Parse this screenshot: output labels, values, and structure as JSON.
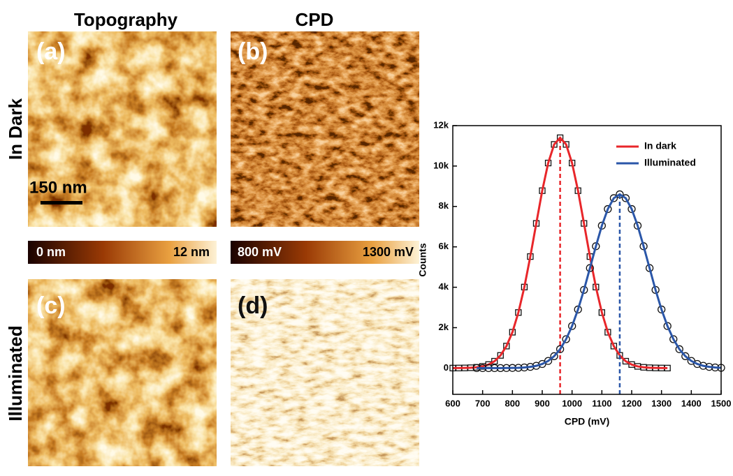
{
  "figure": {
    "columns": [
      "Topography",
      "CPD"
    ],
    "rows": [
      "In Dark",
      "Illuminated"
    ],
    "panels": [
      "(a)",
      "(b)",
      "(c)",
      "(d)"
    ],
    "scale_bar": "150 nm",
    "colorbars": [
      [
        "0 nm",
        "12 nm"
      ],
      [
        "800 mV",
        "1300 mV"
      ]
    ]
  },
  "chart_data": {
    "type": "scatter",
    "xlabel": "CPD (mV)",
    "ylabel": "Counts",
    "xlim": [
      600,
      1500
    ],
    "xticks": [
      600,
      700,
      800,
      900,
      1000,
      1100,
      1200,
      1300,
      1400,
      1500
    ],
    "ylim": [
      -1300,
      12000
    ],
    "yticks": [
      0,
      {
        "value": 2000,
        "label": "2k"
      },
      {
        "value": 4000,
        "label": "4k"
      },
      {
        "value": 6000,
        "label": "6k"
      },
      {
        "value": 8000,
        "label": "8k"
      },
      {
        "value": 10000,
        "label": "10k"
      },
      {
        "value": 12000,
        "label": "12k"
      }
    ],
    "legend": "upper right",
    "series": [
      {
        "name": "In dark",
        "color": "#e8262a",
        "marker": "square",
        "peak": 960,
        "x": [
          600,
          620,
          640,
          660,
          680,
          700,
          720,
          740,
          760,
          780,
          800,
          820,
          840,
          860,
          880,
          900,
          920,
          940,
          960,
          980,
          1000,
          1020,
          1040,
          1060,
          1080,
          1100,
          1120,
          1140,
          1160,
          1180,
          1200,
          1220,
          1240,
          1260,
          1280,
          1300,
          1320
        ],
        "values": [
          0,
          3,
          7,
          17,
          39,
          84,
          175,
          340,
          627,
          1088,
          1775,
          2750,
          4010,
          5520,
          7160,
          8780,
          10150,
          11070,
          11400,
          11070,
          10150,
          8780,
          7160,
          5520,
          4010,
          2750,
          1775,
          1088,
          627,
          340,
          175,
          84,
          39,
          17,
          7,
          3,
          0
        ]
      },
      {
        "name": "Illuminated",
        "color": "#2a56a8",
        "marker": "circle",
        "peak": 1160,
        "x": [
          680,
          700,
          720,
          740,
          760,
          780,
          800,
          820,
          840,
          860,
          880,
          900,
          920,
          940,
          960,
          980,
          1000,
          1020,
          1040,
          1060,
          1080,
          1100,
          1120,
          1140,
          1160,
          1180,
          1200,
          1220,
          1240,
          1260,
          1280,
          1300,
          1320,
          1340,
          1360,
          1380,
          1400,
          1420,
          1440,
          1460,
          1480,
          1500
        ],
        "values": [
          0,
          0,
          0,
          0,
          1,
          3,
          7,
          14,
          30,
          59,
          112,
          203,
          353,
          589,
          935,
          1430,
          2080,
          2900,
          3870,
          4950,
          6030,
          7050,
          7870,
          8410,
          8600,
          8410,
          7870,
          7050,
          6030,
          4950,
          3870,
          2900,
          2080,
          1430,
          935,
          589,
          353,
          203,
          112,
          59,
          30,
          14
        ]
      }
    ]
  }
}
